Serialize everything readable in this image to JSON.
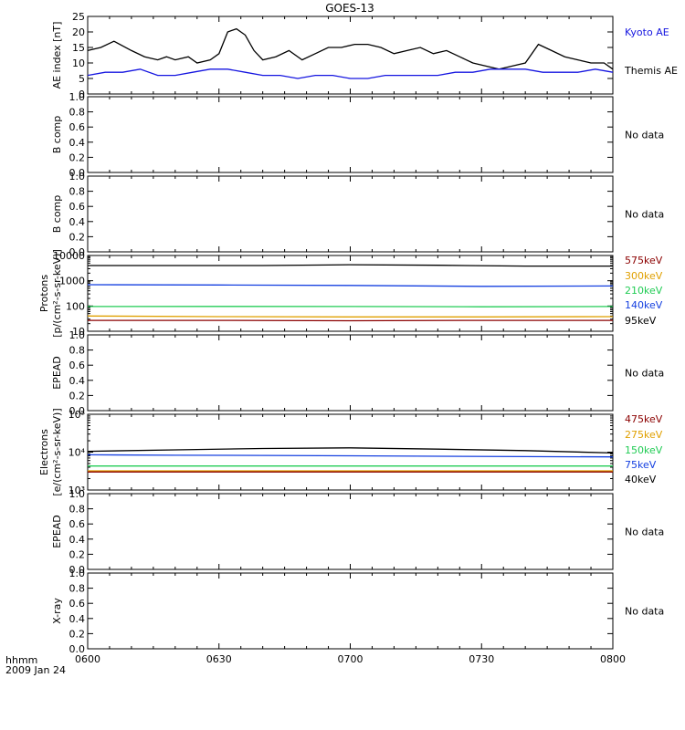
{
  "title": "GOES-13",
  "footer": {
    "time_label": "hhmm",
    "date_label": "2009 Jan 24"
  },
  "x_ticks": [
    {
      "label": "0600",
      "min": 0
    },
    {
      "label": "0630",
      "min": 30
    },
    {
      "label": "0700",
      "min": 60
    },
    {
      "label": "0730",
      "min": 90
    },
    {
      "label": "0800",
      "min": 120
    }
  ],
  "colors": {
    "kyoto": "#1515e0",
    "themis": "#000000",
    "p575": "#8b0000",
    "p300": "#e0a000",
    "p210": "#22cc55",
    "p140": "#1540e0",
    "p95": "#000000",
    "e475": "#8b0000",
    "e275": "#e0a000",
    "e150": "#22cc55",
    "e75": "#1540e0",
    "e40": "#000000"
  },
  "chart_data": [
    {
      "type": "line",
      "panel": "ae",
      "ylabel": "AE index [nT]",
      "ylim": [
        0,
        25
      ],
      "yticks": [
        "0",
        "5",
        "10",
        "15",
        "20",
        "25"
      ],
      "legend": [
        "Kyoto AE",
        "Themis AE"
      ],
      "series": [
        {
          "name": "Themis AE",
          "color_key": "themis",
          "x": [
            0,
            3,
            6,
            10,
            13,
            16,
            18,
            20,
            23,
            25,
            28,
            30,
            32,
            34,
            36,
            38,
            40,
            43,
            46,
            49,
            52,
            55,
            58,
            61,
            64,
            67,
            70,
            73,
            76,
            79,
            82,
            85,
            88,
            91,
            94,
            97,
            100,
            103,
            106,
            109,
            112,
            115,
            118,
            120
          ],
          "y": [
            14,
            15,
            17,
            14,
            12,
            11,
            12,
            11,
            12,
            10,
            11,
            13,
            20,
            21,
            19,
            14,
            11,
            12,
            14,
            11,
            13,
            15,
            15,
            16,
            16,
            15,
            13,
            14,
            15,
            13,
            14,
            12,
            10,
            9,
            8,
            9,
            10,
            16,
            14,
            12,
            11,
            10,
            10,
            8
          ]
        },
        {
          "name": "Kyoto AE",
          "color_key": "kyoto",
          "x": [
            0,
            4,
            8,
            12,
            16,
            20,
            24,
            28,
            32,
            36,
            40,
            44,
            48,
            52,
            56,
            60,
            64,
            68,
            72,
            76,
            80,
            84,
            88,
            92,
            96,
            100,
            104,
            108,
            112,
            116,
            120
          ],
          "y": [
            6,
            7,
            7,
            8,
            6,
            6,
            7,
            8,
            8,
            7,
            6,
            6,
            5,
            6,
            6,
            5,
            5,
            6,
            6,
            6,
            6,
            7,
            7,
            8,
            8,
            8,
            7,
            7,
            7,
            8,
            7
          ]
        }
      ]
    },
    {
      "type": "line",
      "panel": "bcomp1",
      "ylabel": "B comp",
      "ylim": [
        0,
        1
      ],
      "yticks": [
        "0.0",
        "0.2",
        "0.4",
        "0.6",
        "0.8",
        "1.0"
      ],
      "note": "No data",
      "series": []
    },
    {
      "type": "line",
      "panel": "bcomp2",
      "ylabel": "B comp",
      "ylim": [
        0,
        1
      ],
      "yticks": [
        "0.0",
        "0.2",
        "0.4",
        "0.6",
        "0.8",
        "1.0"
      ],
      "note": "No data",
      "series": []
    },
    {
      "type": "line",
      "panel": "protons",
      "ylabel": "Protons",
      "ylabel2": "[p/(cm²-s-sr-keV)]",
      "scale": "log",
      "ylim": [
        10,
        10000
      ],
      "yticks": [
        "10",
        "100",
        "1000",
        "10000"
      ],
      "legend": [
        "575keV",
        "300keV",
        "210keV",
        "140keV",
        "95keV"
      ],
      "series": [
        {
          "name": "95keV",
          "color_key": "p95",
          "x": [
            0,
            20,
            40,
            55,
            60,
            80,
            100,
            120
          ],
          "y": [
            4000,
            4000,
            4000,
            4200,
            4300,
            4100,
            3800,
            3800
          ]
        },
        {
          "name": "140keV",
          "color_key": "p140",
          "x": [
            0,
            30,
            60,
            90,
            120
          ],
          "y": [
            700,
            680,
            650,
            600,
            620
          ]
        },
        {
          "name": "210keV",
          "color_key": "p210",
          "x": [
            0,
            30,
            60,
            90,
            120
          ],
          "y": [
            95,
            96,
            95,
            93,
            95
          ]
        },
        {
          "name": "300keV",
          "color_key": "p300",
          "x": [
            0,
            30,
            60,
            90,
            120
          ],
          "y": [
            40,
            38,
            37,
            37,
            38
          ]
        },
        {
          "name": "575keV",
          "color_key": "p575",
          "x": [
            0,
            30,
            60,
            90,
            120
          ],
          "y": [
            27,
            27,
            26,
            27,
            27
          ]
        }
      ]
    },
    {
      "type": "line",
      "panel": "epead1",
      "ylabel": "EPEAD",
      "ylim": [
        0,
        1
      ],
      "yticks": [
        "0.0",
        "0.2",
        "0.4",
        "0.6",
        "0.8",
        "1.0"
      ],
      "note": "No data",
      "series": []
    },
    {
      "type": "line",
      "panel": "electrons",
      "ylabel": "Electrons",
      "ylabel2": "[e/(cm²-s-sr-keV)]",
      "scale": "log",
      "ylim": [
        1000,
        100000
      ],
      "yticks": [
        "10³",
        "10⁴",
        "10⁵"
      ],
      "legend": [
        "475keV",
        "275keV",
        "150keV",
        "75keV",
        "40keV"
      ],
      "series": [
        {
          "name": "40keV",
          "color_key": "e40",
          "x": [
            0,
            20,
            40,
            60,
            80,
            100,
            120
          ],
          "y": [
            10500,
            11500,
            12500,
            13000,
            12000,
            11000,
            9500
          ]
        },
        {
          "name": "75keV",
          "color_key": "e75",
          "x": [
            0,
            20,
            40,
            60,
            80,
            100,
            120
          ],
          "y": [
            8500,
            8300,
            8200,
            8000,
            7800,
            7600,
            7500
          ]
        },
        {
          "name": "150keV",
          "color_key": "e150",
          "x": [
            0,
            30,
            60,
            90,
            120
          ],
          "y": [
            4300,
            4300,
            4300,
            4300,
            4300
          ]
        },
        {
          "name": "275keV",
          "color_key": "e275",
          "x": [
            0,
            30,
            60,
            90,
            120
          ],
          "y": [
            3200,
            3200,
            3200,
            3200,
            3200
          ]
        },
        {
          "name": "475keV",
          "color_key": "e475",
          "x": [
            0,
            30,
            60,
            90,
            120
          ],
          "y": [
            3000,
            3000,
            3000,
            3000,
            3000
          ]
        }
      ]
    },
    {
      "type": "line",
      "panel": "epead2",
      "ylabel": "EPEAD",
      "ylim": [
        0,
        1
      ],
      "yticks": [
        "0.0",
        "0.2",
        "0.4",
        "0.6",
        "0.8",
        "1.0"
      ],
      "note": "No data",
      "series": []
    },
    {
      "type": "line",
      "panel": "xray",
      "ylabel": "X-ray",
      "ylim": [
        0,
        1
      ],
      "yticks": [
        "0.0",
        "0.2",
        "0.4",
        "0.6",
        "0.8",
        "1.0"
      ],
      "note": "No data",
      "series": []
    }
  ]
}
